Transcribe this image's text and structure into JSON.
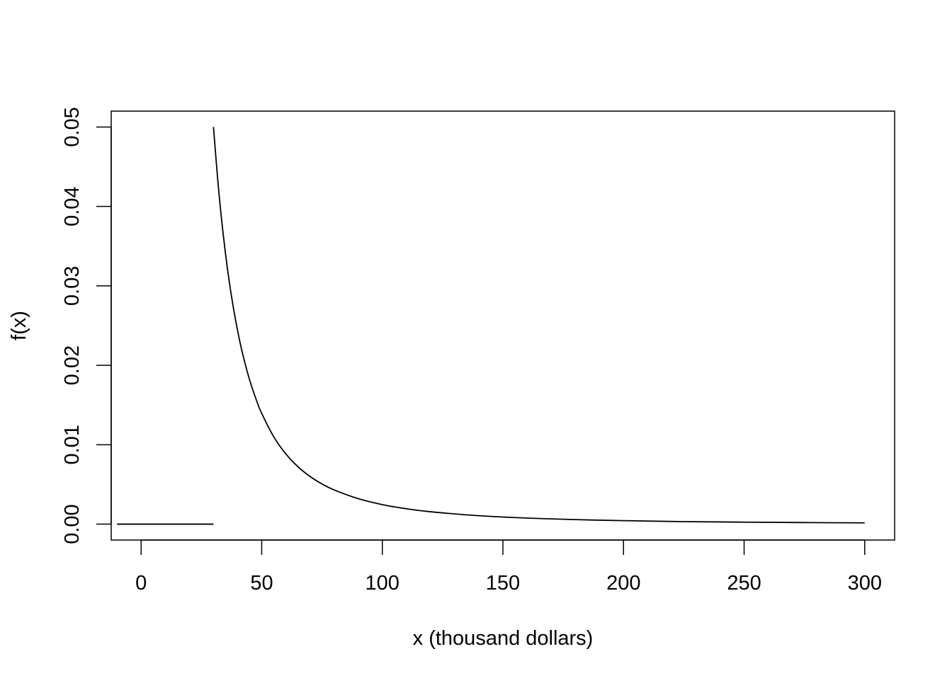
{
  "chart_data": {
    "type": "line",
    "title": "",
    "xlabel": "x (thousand dollars)",
    "ylabel": "f(x)",
    "xlim": [
      -12.4,
      312.4
    ],
    "ylim": [
      -0.002,
      0.052
    ],
    "x_ticks": [
      0,
      50,
      100,
      150,
      200,
      250,
      300
    ],
    "x_tick_labels": [
      "0",
      "50",
      "100",
      "150",
      "200",
      "250",
      "300"
    ],
    "y_ticks": [
      0,
      0.01,
      0.02,
      0.03,
      0.04,
      0.05
    ],
    "y_tick_labels": [
      "0.00",
      "0.01",
      "0.02",
      "0.03",
      "0.04",
      "0.05"
    ],
    "grid": false,
    "line_color": "#000000",
    "series": [
      {
        "x": [
          -10,
          30
        ],
        "y": [
          0,
          0
        ]
      },
      {
        "x": [
          30,
          32,
          34,
          36,
          38,
          40,
          42,
          45,
          48,
          50,
          55,
          60,
          65,
          70,
          75,
          80,
          90,
          100,
          110,
          120,
          140,
          160,
          180,
          200,
          225,
          250,
          275,
          300
        ],
        "y": [
          0.05,
          0.04255,
          0.03657,
          0.0317,
          0.02769,
          0.02436,
          0.02156,
          0.01814,
          0.01544,
          0.01394,
          0.01099,
          0.00884,
          0.00724,
          0.00601,
          0.00506,
          0.00431,
          0.00321,
          0.00246,
          0.00194,
          0.00156,
          0.00106,
          0.00076,
          0.00057,
          0.00044,
          0.00032,
          0.00025,
          0.0002,
          0.00016
        ]
      }
    ]
  }
}
